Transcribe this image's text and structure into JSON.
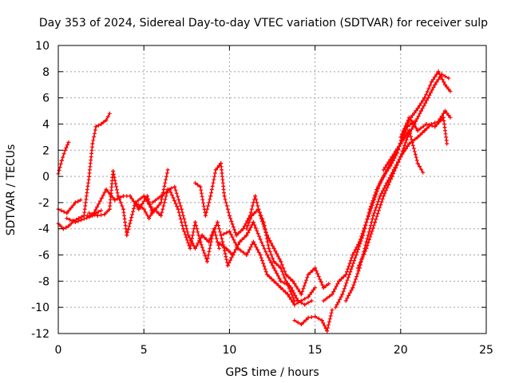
{
  "chart_data": {
    "type": "scatter",
    "title": "Day 353 of 2024, Sidereal Day-to-day VTEC variation (SDTVAR) for receiver sulp",
    "xlabel": "GPS time / hours",
    "ylabel": "SDTVAR / TECUs",
    "xlim": [
      0,
      25
    ],
    "ylim": [
      -12,
      10
    ],
    "xticks": [
      "0",
      "5",
      "10",
      "15",
      "20",
      "25"
    ],
    "yticks": [
      "-12",
      "-10",
      "-8",
      "-6",
      "-4",
      "-2",
      "0",
      "2",
      "4",
      "6",
      "8",
      "10"
    ],
    "grid": true,
    "marker": "+",
    "color": "#ff0000",
    "series": [
      {
        "name": "s1",
        "x": [
          0.0,
          0.2,
          0.4,
          0.6
        ],
        "y": [
          0.2,
          1.2,
          2.0,
          2.6
        ]
      },
      {
        "name": "s2",
        "x": [
          0.0,
          0.5,
          1.0,
          1.3
        ],
        "y": [
          -2.5,
          -2.8,
          -2.0,
          -1.8
        ]
      },
      {
        "name": "s3",
        "x": [
          0.0,
          0.3,
          0.6,
          0.9,
          1.2,
          1.5,
          1.9,
          2.2,
          2.5
        ],
        "y": [
          -3.6,
          -4.0,
          -3.8,
          -3.4,
          -3.2,
          -3.0,
          -3.0,
          -2.8,
          -2.6
        ]
      },
      {
        "name": "s4",
        "x": [
          1.5,
          1.8,
          2.0,
          2.2,
          2.5,
          2.8,
          3.0
        ],
        "y": [
          -3.0,
          0.0,
          2.5,
          3.8,
          4.0,
          4.3,
          4.8
        ]
      },
      {
        "name": "s5",
        "x": [
          1.8,
          2.3,
          2.7,
          3.0,
          3.2,
          3.5,
          3.8,
          4.0,
          4.5,
          5.0,
          5.5
        ],
        "y": [
          -2.8,
          -3.0,
          -2.9,
          -2.5,
          0.4,
          -1.5,
          -2.5,
          -4.5,
          -2.0,
          -1.5,
          -2.5
        ]
      },
      {
        "name": "s6",
        "x": [
          0.5,
          1.0,
          2.0,
          2.8,
          3.3,
          3.8,
          4.2,
          4.7,
          5.2,
          5.5,
          6.0,
          6.4
        ],
        "y": [
          -3.2,
          -3.5,
          -3.0,
          -1.0,
          -1.8,
          -1.5,
          -1.5,
          -2.5,
          -1.5,
          -2.8,
          -2.0,
          0.5
        ]
      },
      {
        "name": "s7",
        "x": [
          4.5,
          5.0,
          5.3,
          5.6,
          6.0,
          6.4,
          6.8,
          7.2,
          7.6,
          8.0,
          8.4,
          8.8,
          9.1,
          9.4
        ],
        "y": [
          -2.0,
          -2.5,
          -3.2,
          -2.5,
          -3.0,
          -1.0,
          -0.8,
          -2.5,
          -4.5,
          -5.5,
          -4.5,
          -5.0,
          -4.0,
          -5.5
        ]
      },
      {
        "name": "s8",
        "x": [
          5.5,
          6.0,
          6.5,
          7.0,
          7.3,
          7.7,
          8.0,
          8.3,
          8.7,
          9.0,
          9.3,
          9.6,
          9.9,
          10.2
        ],
        "y": [
          -2.0,
          -1.5,
          -1.0,
          -2.5,
          -4.0,
          -5.5,
          -3.5,
          -5.0,
          -6.5,
          -4.5,
          -3.5,
          -5.0,
          -6.8,
          -6.0
        ]
      },
      {
        "name": "s9",
        "x": [
          8.0,
          8.3,
          8.6,
          8.9,
          9.2,
          9.5,
          9.7,
          10.0
        ],
        "y": [
          -0.5,
          -0.8,
          -3.0,
          -1.5,
          0.5,
          1.0,
          -1.5,
          -3.0
        ]
      },
      {
        "name": "s10",
        "x": [
          9.3,
          9.8,
          10.2,
          10.6,
          11.0,
          11.4,
          11.8,
          12.2,
          12.6,
          13.0,
          13.4,
          13.8,
          14.2,
          14.6,
          15.0
        ],
        "y": [
          -5.0,
          -5.5,
          -6.0,
          -5.0,
          -4.5,
          -3.5,
          -4.8,
          -6.0,
          -7.0,
          -8.0,
          -8.3,
          -9.5,
          -9.5,
          -9.2,
          -8.5
        ]
      },
      {
        "name": "s11",
        "x": [
          9.5,
          10.0,
          10.5,
          11.0,
          11.4,
          11.8,
          12.2,
          12.6,
          13.0,
          13.4,
          13.8,
          14.2
        ],
        "y": [
          -4.5,
          -4.2,
          -5.5,
          -6.0,
          -5.0,
          -6.0,
          -7.5,
          -8.0,
          -8.5,
          -9.0,
          -9.8,
          -9.5
        ]
      },
      {
        "name": "s12",
        "x": [
          10.0,
          10.4,
          10.8,
          11.2,
          11.5,
          11.8,
          12.2,
          12.6,
          13.0,
          13.3,
          13.7,
          14.2,
          14.6,
          15.0,
          15.5,
          15.8
        ],
        "y": [
          -3.0,
          -4.5,
          -4.0,
          -3.0,
          -1.5,
          -3.0,
          -4.5,
          -5.5,
          -6.5,
          -7.5,
          -8.0,
          -9.0,
          -7.5,
          -7.0,
          -8.5,
          -8.2
        ]
      },
      {
        "name": "s13",
        "x": [
          11.0,
          11.3,
          11.7,
          12.0,
          12.3,
          12.6,
          13.0,
          13.3,
          13.6,
          14.0,
          14.4,
          14.8
        ],
        "y": [
          -4.0,
          -3.0,
          -2.5,
          -3.5,
          -5.5,
          -6.5,
          -7.0,
          -8.0,
          -8.5,
          -9.5,
          -9.8,
          -9.5
        ]
      },
      {
        "name": "s14",
        "x": [
          13.8,
          14.2,
          14.6,
          15.0,
          15.4,
          15.7,
          16.0
        ],
        "y": [
          -11.0,
          -11.3,
          -10.8,
          -10.7,
          -11.0,
          -11.8,
          -10.2
        ]
      },
      {
        "name": "s15",
        "x": [
          15.5,
          16.0,
          16.4,
          16.8,
          17.2,
          17.6,
          18.0,
          18.4,
          18.8,
          19.2,
          19.6,
          20.0,
          20.4,
          20.8
        ],
        "y": [
          -9.5,
          -9.0,
          -8.0,
          -7.5,
          -6.0,
          -5.0,
          -3.5,
          -2.0,
          -0.5,
          0.5,
          1.5,
          2.5,
          3.8,
          4.2
        ]
      },
      {
        "name": "s16",
        "x": [
          16.2,
          16.6,
          17.0,
          17.4,
          17.8,
          18.2,
          18.6,
          19.0,
          19.4,
          19.8,
          20.2,
          20.6,
          21.0,
          21.4,
          21.8,
          22.2,
          22.6,
          22.9
        ],
        "y": [
          -10.0,
          -9.0,
          -7.5,
          -6.0,
          -4.5,
          -2.5,
          -1.0,
          0.0,
          0.8,
          1.8,
          3.5,
          4.5,
          5.2,
          6.0,
          7.2,
          8.0,
          7.0,
          6.5
        ]
      },
      {
        "name": "s17",
        "x": [
          16.8,
          17.2,
          17.6,
          18.0,
          18.4,
          18.8,
          19.2,
          19.6,
          20.0,
          20.4,
          20.8,
          21.2,
          21.6,
          22.0,
          22.4,
          22.8
        ],
        "y": [
          -9.5,
          -8.5,
          -7.0,
          -5.0,
          -3.0,
          -1.5,
          -0.5,
          0.5,
          1.5,
          3.0,
          4.0,
          5.0,
          6.0,
          7.0,
          7.8,
          7.5
        ]
      },
      {
        "name": "s18",
        "x": [
          17.5,
          18.0,
          18.5,
          19.0,
          19.5,
          20.0,
          20.5,
          21.0,
          21.4,
          21.8,
          22.2,
          22.6,
          22.9
        ],
        "y": [
          -7.0,
          -5.5,
          -3.5,
          -1.5,
          0.0,
          1.5,
          2.5,
          3.0,
          3.5,
          4.0,
          4.2,
          5.0,
          4.5
        ]
      },
      {
        "name": "s19",
        "x": [
          19.0,
          19.5,
          20.0,
          20.5,
          21.0,
          21.3
        ],
        "y": [
          0.5,
          1.5,
          2.5,
          3.5,
          1.0,
          0.3
        ]
      },
      {
        "name": "s20",
        "x": [
          20.0,
          20.5,
          21.0,
          21.5,
          22.0,
          22.5,
          22.7
        ],
        "y": [
          3.0,
          4.5,
          3.5,
          4.0,
          3.8,
          4.5,
          2.5
        ]
      }
    ]
  }
}
